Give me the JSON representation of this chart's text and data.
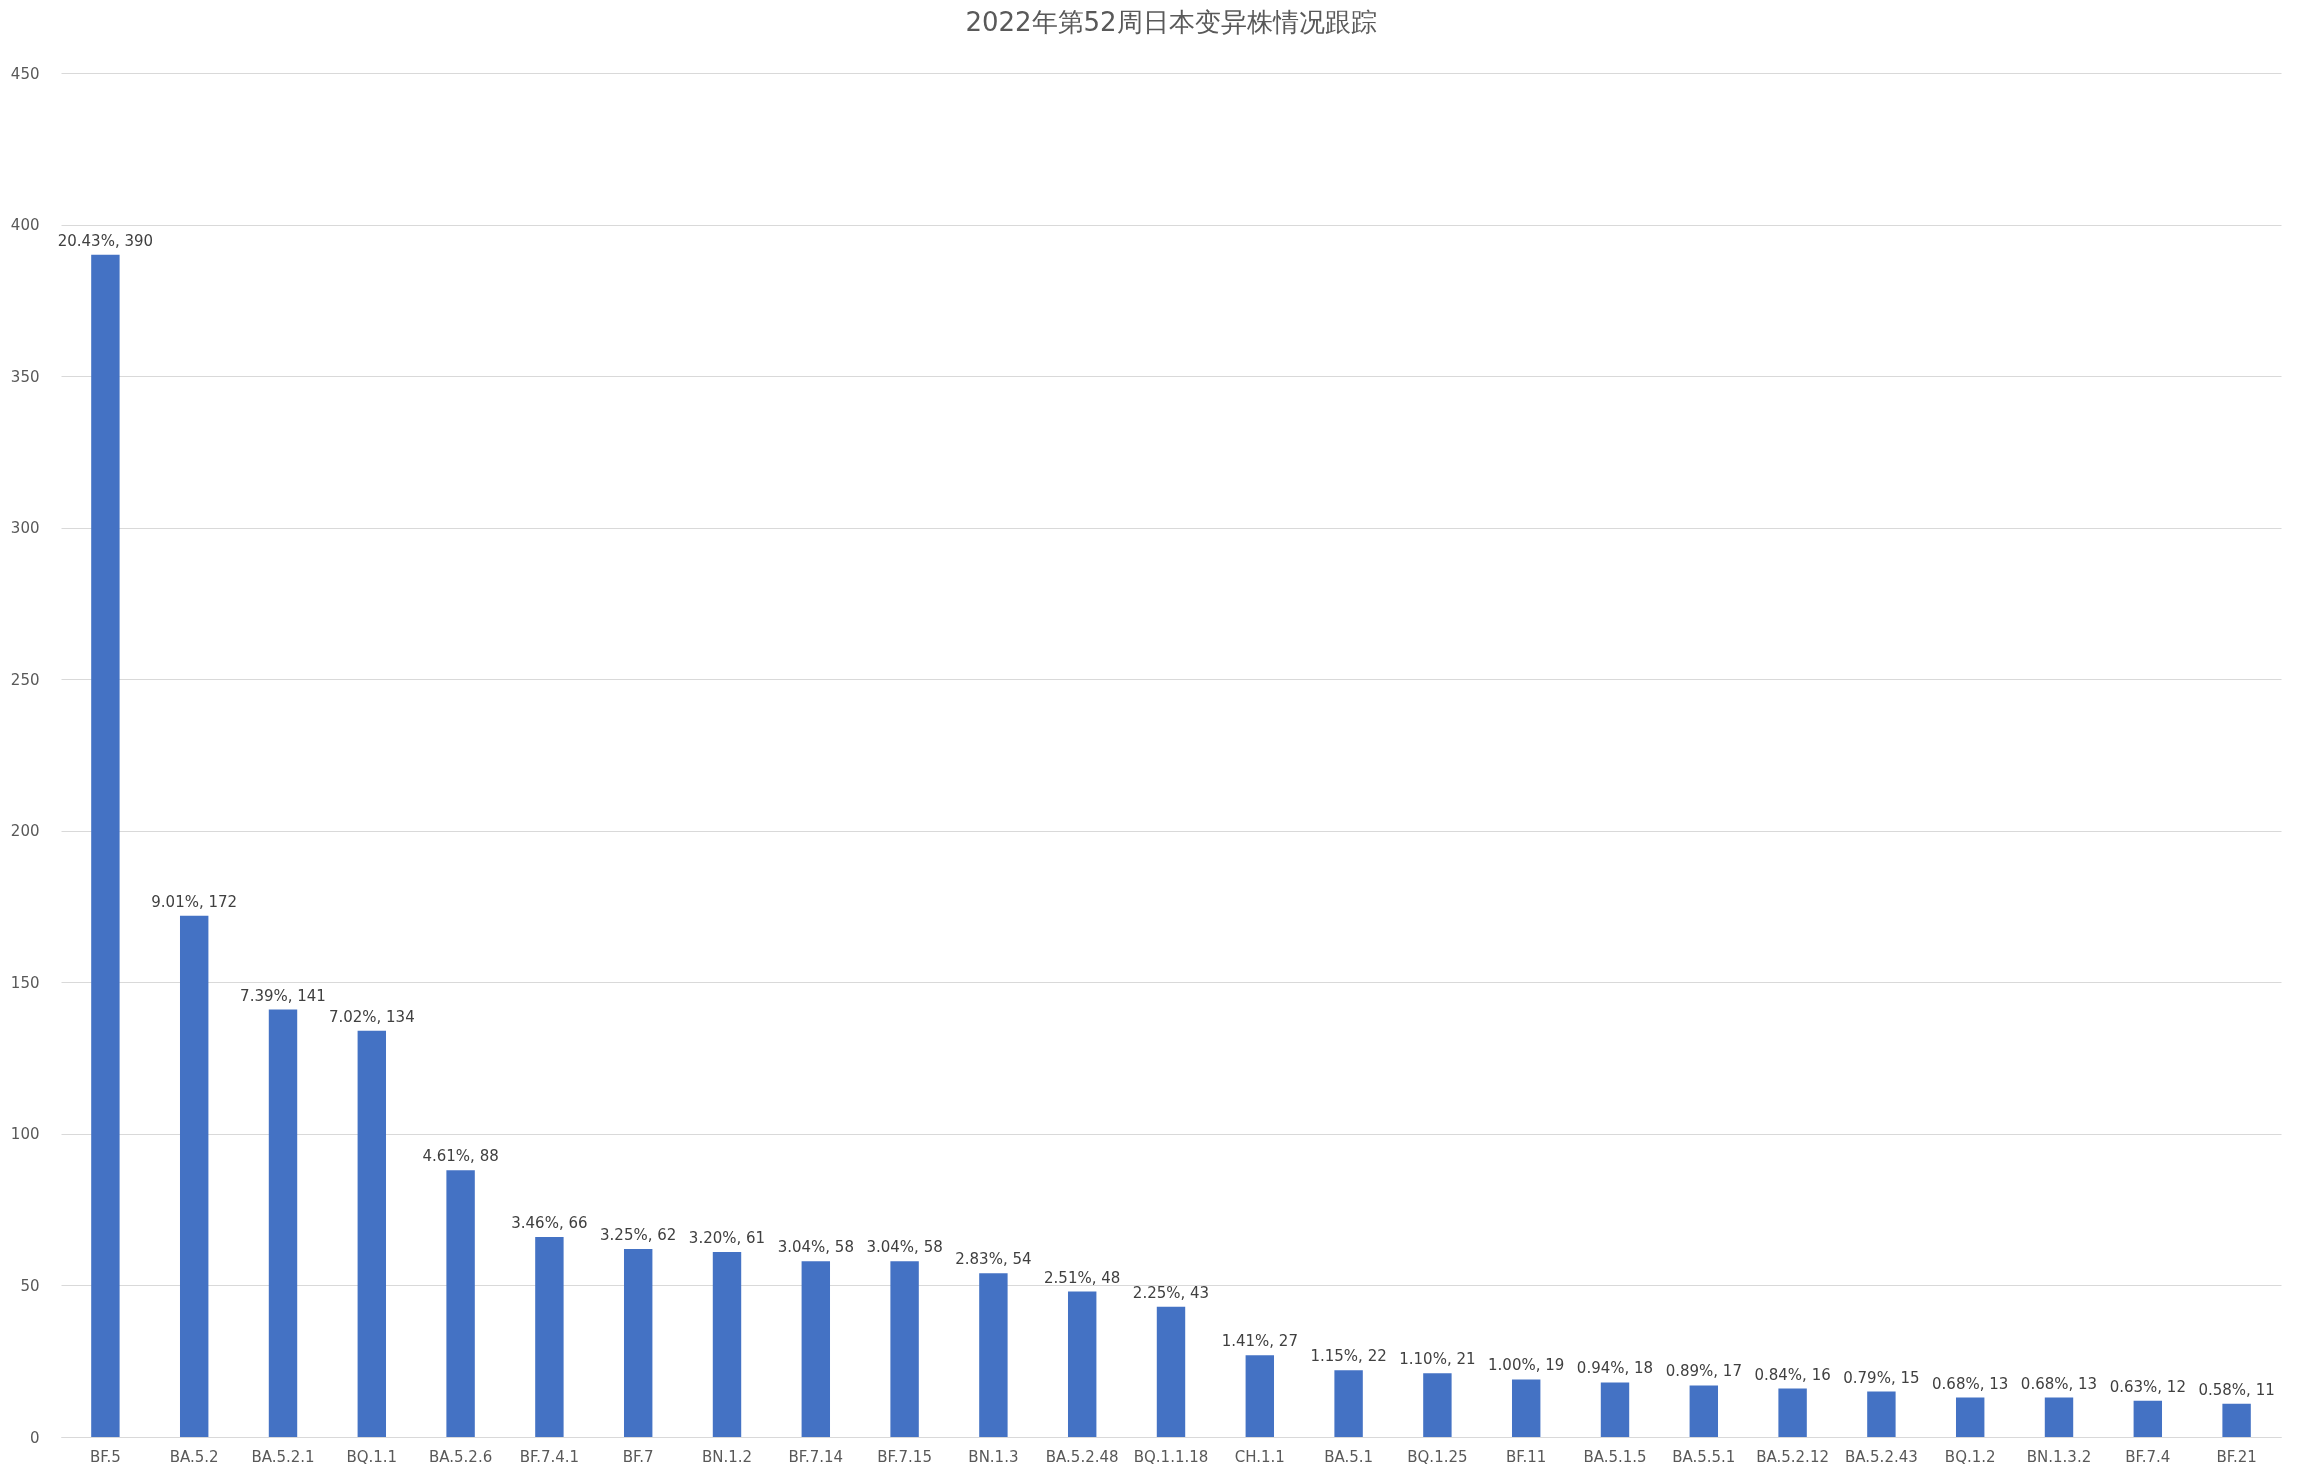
{
  "chart_data": {
    "type": "bar",
    "title": "2022年第52周日本变异株情况跟踪",
    "categories": [
      "BF.5",
      "BA.5.2",
      "BA.5.2.1",
      "BQ.1.1",
      "BA.5.2.6",
      "BF.7.4.1",
      "BF.7",
      "BN.1.2",
      "BF.7.14",
      "BF.7.15",
      "BN.1.3",
      "BA.5.2.48",
      "BQ.1.1.18",
      "CH.1.1",
      "BA.5.1",
      "BQ.1.25",
      "BF.11",
      "BA.5.1.5",
      "BA.5.5.1",
      "BA.5.2.12",
      "BA.5.2.43",
      "BQ.1.2",
      "BN.1.3.2",
      "BF.7.4",
      "BF.21"
    ],
    "values": [
      390,
      172,
      141,
      134,
      88,
      66,
      62,
      61,
      58,
      58,
      54,
      48,
      43,
      27,
      22,
      21,
      19,
      18,
      17,
      16,
      15,
      13,
      13,
      12,
      11
    ],
    "value_labels": [
      "20.43%, 390",
      "9.01%, 172",
      "7.39%, 141",
      "7.02%, 134",
      "4.61%, 88",
      "3.46%, 66",
      "3.25%, 62",
      "3.20%, 61",
      "3.04%, 58",
      "3.04%, 58",
      "2.83%, 54",
      "2.51%, 48",
      "2.25%, 43",
      "1.41%, 27",
      "1.15%, 22",
      "1.10%, 21",
      "1.00%, 19",
      "0.94%, 18",
      "0.89%, 17",
      "0.84%, 16",
      "0.79%, 15",
      "0.68%, 13",
      "0.68%, 13",
      "0.63%, 12",
      "0.58%, 11"
    ],
    "color": "#4472c4",
    "ylim": [
      0,
      450
    ],
    "yticks": [
      0,
      50,
      100,
      150,
      200,
      250,
      300,
      350,
      400,
      450
    ],
    "grid": "y"
  }
}
